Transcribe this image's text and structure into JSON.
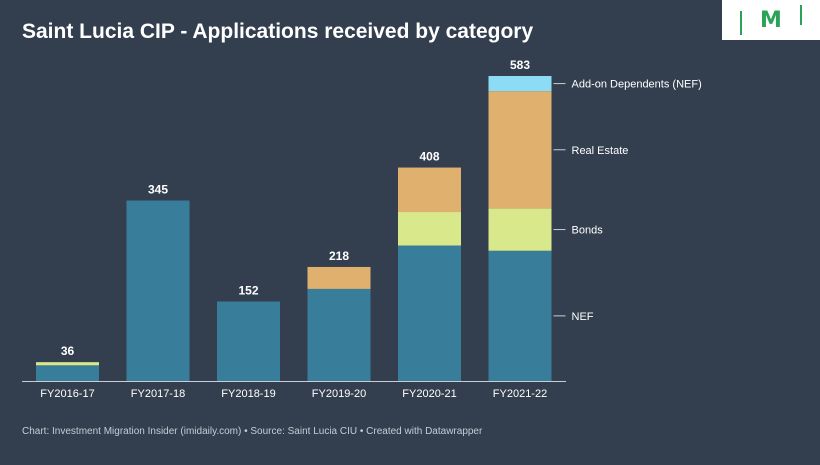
{
  "header": {
    "title": "Saint Lucia CIP - Applications received by category"
  },
  "logo": {
    "text": "M"
  },
  "footer": {
    "credit": "Chart: Investment Migration Insider (imidaily.com) • Source: Saint Lucia CIU • Created with Datawrapper"
  },
  "colors": {
    "background": "#333f4f",
    "NEF": "#387d99",
    "Bonds": "#d9e88a",
    "Real Estate": "#e0b06f",
    "Add-on Dependents (NEF)": "#8ddcf5"
  },
  "chart_data": {
    "type": "bar",
    "stacked": true,
    "title": "Saint Lucia CIP - Applications received by category",
    "xlabel": "",
    "ylabel": "",
    "ylim": [
      0,
      583
    ],
    "categories": [
      "FY2016-17",
      "FY2017-18",
      "FY2018-19",
      "FY2019-20",
      "FY2020-21",
      "FY2021-22"
    ],
    "series": [
      {
        "name": "NEF",
        "values": [
          30,
          345,
          152,
          176,
          259,
          249
        ]
      },
      {
        "name": "Bonds",
        "values": [
          6,
          0,
          0,
          0,
          64,
          81
        ]
      },
      {
        "name": "Real Estate",
        "values": [
          0,
          0,
          0,
          42,
          85,
          224
        ]
      },
      {
        "name": "Add-on Dependents (NEF)",
        "values": [
          0,
          0,
          0,
          0,
          0,
          29
        ]
      }
    ],
    "totals": [
      "36",
      "345",
      "152",
      "218",
      "408",
      "583"
    ],
    "legend_placement": "right, labels aligned to last bar"
  }
}
